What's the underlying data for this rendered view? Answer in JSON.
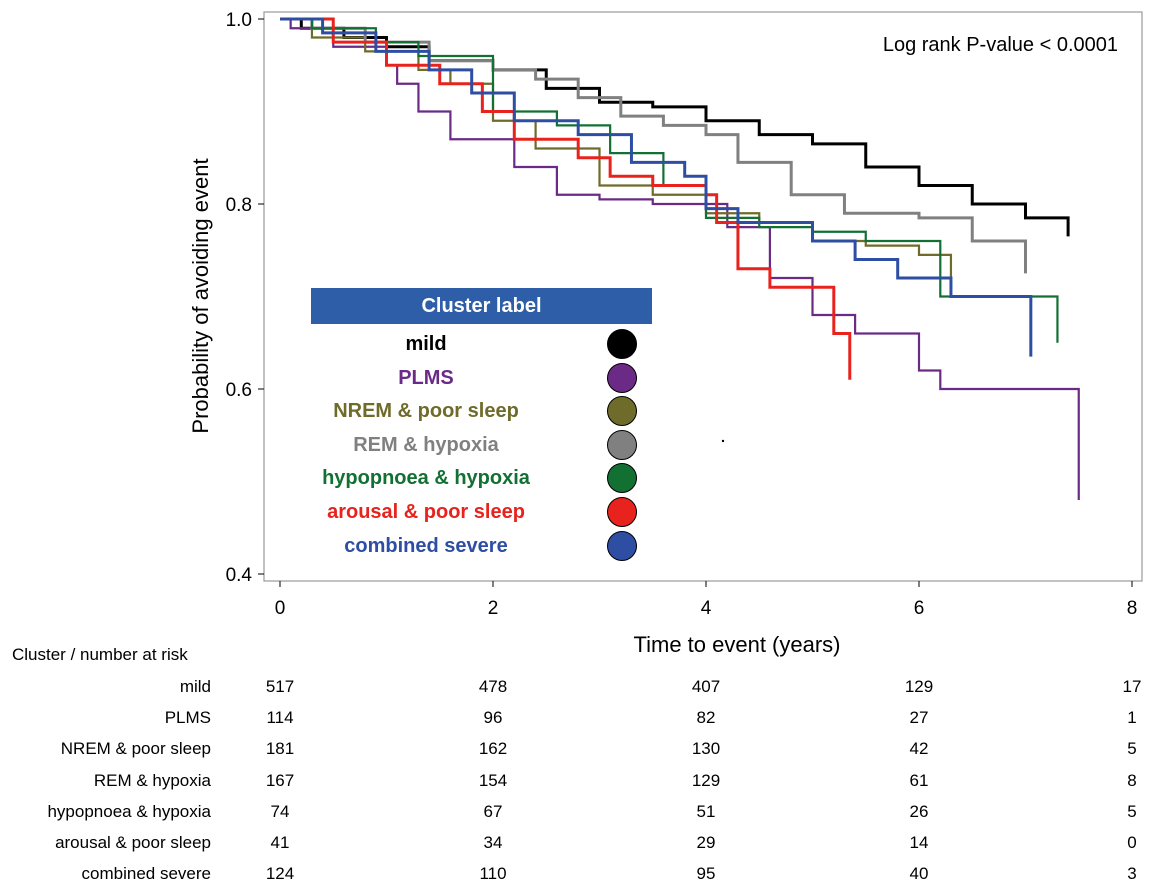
{
  "chart_data": {
    "type": "line",
    "title": "",
    "annotation": "Log rank P-value < 0.0001",
    "xlabel": "Time to event (years)",
    "ylabel": "Probability of avoiding event",
    "xlim": [
      0,
      8
    ],
    "ylim": [
      0.4,
      1.0
    ],
    "x_ticks": [
      "0",
      "2",
      "4",
      "6",
      "8"
    ],
    "y_ticks": [
      "0.4",
      "0.6",
      "0.8",
      "1.0"
    ],
    "legend_title": "Cluster label",
    "legend_position": "center-left",
    "series": [
      {
        "name": "mild",
        "color": "#000000",
        "x": [
          0,
          0.2,
          0.6,
          1.0,
          1.4,
          2.0,
          2.5,
          3.0,
          3.5,
          4.0,
          4.5,
          5.0,
          5.5,
          6.0,
          6.5,
          7.0,
          7.4
        ],
        "y": [
          1.0,
          0.99,
          0.98,
          0.97,
          0.955,
          0.945,
          0.925,
          0.91,
          0.905,
          0.89,
          0.875,
          0.865,
          0.84,
          0.82,
          0.8,
          0.785,
          0.765
        ]
      },
      {
        "name": "PLMS",
        "color": "#6b2a86",
        "x": [
          0,
          0.1,
          0.5,
          1.0,
          1.1,
          1.3,
          1.6,
          2.2,
          2.6,
          3.0,
          3.5,
          4.2,
          4.6,
          5.0,
          5.4,
          6.0,
          6.2,
          7.4,
          7.5
        ],
        "y": [
          1.0,
          0.99,
          0.97,
          0.95,
          0.93,
          0.9,
          0.87,
          0.84,
          0.81,
          0.805,
          0.8,
          0.775,
          0.72,
          0.68,
          0.66,
          0.62,
          0.6,
          0.6,
          0.48
        ]
      },
      {
        "name": "NREM & poor sleep",
        "color": "#6f6b2a",
        "x": [
          0,
          0.3,
          0.8,
          1.3,
          1.6,
          2.0,
          2.4,
          3.0,
          3.5,
          4.0,
          4.5,
          5.0,
          5.5,
          6.0,
          6.3
        ],
        "y": [
          1.0,
          0.98,
          0.965,
          0.945,
          0.93,
          0.89,
          0.86,
          0.82,
          0.81,
          0.79,
          0.78,
          0.76,
          0.755,
          0.745,
          0.72
        ]
      },
      {
        "name": "REM & hypoxia",
        "color": "#808080",
        "x": [
          0,
          0.3,
          0.8,
          1.4,
          2.0,
          2.4,
          2.8,
          3.2,
          3.6,
          4.0,
          4.3,
          4.8,
          5.3,
          6.0,
          6.5,
          7.0
        ],
        "y": [
          1.0,
          0.99,
          0.975,
          0.955,
          0.945,
          0.935,
          0.915,
          0.895,
          0.885,
          0.875,
          0.845,
          0.81,
          0.79,
          0.785,
          0.76,
          0.725
        ]
      },
      {
        "name": "hypopnoea & hypoxia",
        "color": "#137033",
        "x": [
          0,
          0.3,
          0.9,
          1.3,
          2.0,
          2.6,
          3.1,
          3.6,
          4.0,
          4.5,
          5.0,
          5.5,
          6.2,
          6.8,
          7.3
        ],
        "y": [
          1.0,
          0.99,
          0.975,
          0.96,
          0.9,
          0.885,
          0.855,
          0.82,
          0.785,
          0.775,
          0.77,
          0.76,
          0.7,
          0.7,
          0.65
        ]
      },
      {
        "name": "arousal & poor sleep",
        "color": "#e8221c",
        "x": [
          0,
          0.5,
          1.0,
          1.5,
          1.9,
          2.2,
          2.8,
          3.1,
          3.5,
          4.0,
          4.1,
          4.3,
          4.6,
          5.2,
          5.35
        ],
        "y": [
          1.0,
          0.975,
          0.95,
          0.93,
          0.9,
          0.87,
          0.85,
          0.83,
          0.82,
          0.81,
          0.78,
          0.73,
          0.71,
          0.66,
          0.61
        ]
      },
      {
        "name": "combined severe",
        "color": "#2e4ea3",
        "x": [
          0,
          0.4,
          0.9,
          1.4,
          1.8,
          2.2,
          2.8,
          3.3,
          3.8,
          4.0,
          4.3,
          5.0,
          5.4,
          5.8,
          6.3,
          7.0,
          7.05
        ],
        "y": [
          1.0,
          0.985,
          0.965,
          0.945,
          0.92,
          0.89,
          0.875,
          0.845,
          0.83,
          0.795,
          0.78,
          0.76,
          0.74,
          0.72,
          0.7,
          0.7,
          0.635
        ]
      }
    ]
  },
  "risk_table": {
    "title": "Cluster / number at risk",
    "times": [
      0,
      2,
      4,
      6,
      8
    ],
    "rows": [
      {
        "label": "mild",
        "values": [
          "517",
          "478",
          "407",
          "129",
          "17"
        ]
      },
      {
        "label": "PLMS",
        "values": [
          "114",
          "96",
          "82",
          "27",
          "1"
        ]
      },
      {
        "label": "NREM & poor sleep",
        "values": [
          "181",
          "162",
          "130",
          "42",
          "5"
        ]
      },
      {
        "label": "REM & hypoxia",
        "values": [
          "167",
          "154",
          "129",
          "61",
          "8"
        ]
      },
      {
        "label": "hypopnoea & hypoxia",
        "values": [
          "74",
          "67",
          "51",
          "26",
          "5"
        ]
      },
      {
        "label": "arousal & poor sleep",
        "values": [
          "41",
          "34",
          "29",
          "14",
          "0"
        ]
      },
      {
        "label": "combined severe",
        "values": [
          "124",
          "110",
          "95",
          "40",
          "3"
        ]
      }
    ]
  }
}
